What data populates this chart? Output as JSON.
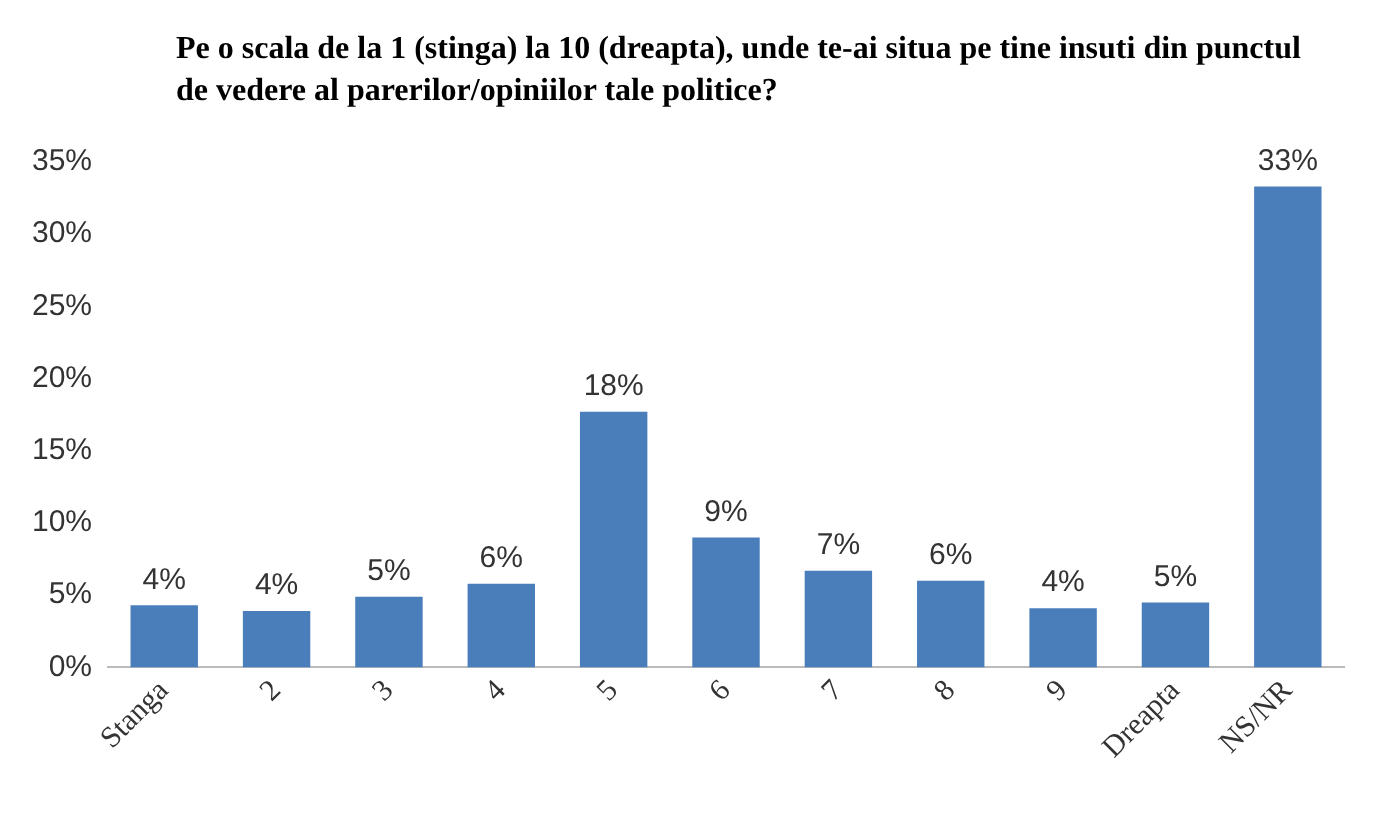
{
  "chart_data": {
    "type": "bar",
    "title": "Pe o scala de la 1 (stinga) la 10 (dreapta), unde te-ai situa pe tine insuti din punctul de vedere al parerilor/opiniilor tale politice?",
    "categories": [
      "Stanga",
      "2",
      "3",
      "4",
      "5",
      "6",
      "7",
      "8",
      "9",
      "Dreapta",
      "NS/NR"
    ],
    "values": [
      4.3,
      3.9,
      4.9,
      5.8,
      17.7,
      9.0,
      6.7,
      6.0,
      4.1,
      4.5,
      33.3
    ],
    "value_labels": [
      "4%",
      "4%",
      "5%",
      "6%",
      "18%",
      "9%",
      "7%",
      "6%",
      "4%",
      "5%",
      "33%"
    ],
    "color": "#4a7ebb",
    "ylim": [
      0,
      35
    ],
    "yticks": [
      {
        "value": 0,
        "label": "0%"
      },
      {
        "value": 5,
        "label": "5%"
      },
      {
        "value": 10,
        "label": "10%"
      },
      {
        "value": 15,
        "label": "15%"
      },
      {
        "value": 20,
        "label": "20%"
      },
      {
        "value": 25,
        "label": "25%"
      },
      {
        "value": 30,
        "label": "30%"
      },
      {
        "value": 35,
        "label": "35%"
      }
    ],
    "grid": false,
    "legend": false
  }
}
